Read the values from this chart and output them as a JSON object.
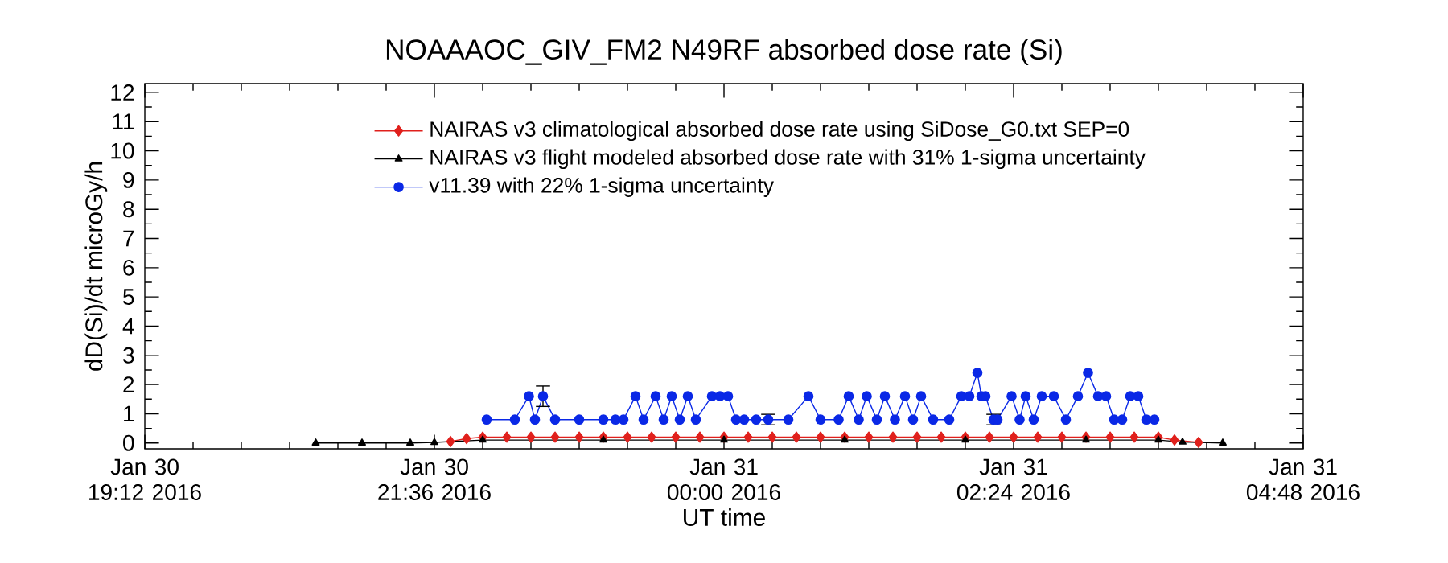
{
  "chart_data": {
    "type": "line",
    "title": "NOAAAOC_GIV_FM2    N49RF  absorbed dose rate (Si)",
    "xlabel": "UT time",
    "ylabel": "dD(Si)/dt microGy/h",
    "xlim": [
      "2016-01-30T19:12",
      "2016-01-31T04:48"
    ],
    "ylim": [
      -0.2,
      12.3
    ],
    "xticks": [
      {
        "value": "2016-01-30T19:12",
        "label": "Jan 30 19:12 2016"
      },
      {
        "value": "2016-01-30T21:36",
        "label": "Jan 30 21:36 2016"
      },
      {
        "value": "2016-01-31T00:00",
        "label": "Jan 31 00:00 2016"
      },
      {
        "value": "2016-01-31T02:24",
        "label": "Jan 31 02:24 2016"
      },
      {
        "value": "2016-01-31T04:48",
        "label": "Jan 31 04:48 2016"
      }
    ],
    "yticks": [
      0,
      1,
      2,
      3,
      4,
      5,
      6,
      7,
      8,
      9,
      10,
      11,
      12
    ],
    "legend": "top",
    "series": [
      {
        "name": "NAIRAS v3 climatological absorbed dose rate using SiDose_G0.txt SEP=0",
        "color": "#e0201c",
        "marker": "diamond",
        "x": [
          "2016-01-30T21:44",
          "2016-01-30T21:52",
          "2016-01-30T22:00",
          "2016-01-30T22:12",
          "2016-01-30T22:24",
          "2016-01-30T22:36",
          "2016-01-30T22:48",
          "2016-01-30T23:00",
          "2016-01-30T23:12",
          "2016-01-30T23:24",
          "2016-01-30T23:36",
          "2016-01-30T23:48",
          "2016-01-31T00:00",
          "2016-01-31T00:12",
          "2016-01-31T00:24",
          "2016-01-31T00:36",
          "2016-01-31T00:48",
          "2016-01-31T01:00",
          "2016-01-31T01:12",
          "2016-01-31T01:24",
          "2016-01-31T01:36",
          "2016-01-31T01:48",
          "2016-01-31T02:00",
          "2016-01-31T02:12",
          "2016-01-31T02:24",
          "2016-01-31T02:36",
          "2016-01-31T02:48",
          "2016-01-31T03:00",
          "2016-01-31T03:12",
          "2016-01-31T03:24",
          "2016-01-31T03:36",
          "2016-01-31T03:44",
          "2016-01-31T03:56"
        ],
        "values": [
          0.05,
          0.15,
          0.2,
          0.2,
          0.2,
          0.2,
          0.2,
          0.2,
          0.2,
          0.2,
          0.2,
          0.2,
          0.2,
          0.2,
          0.2,
          0.2,
          0.2,
          0.2,
          0.2,
          0.2,
          0.2,
          0.2,
          0.2,
          0.2,
          0.2,
          0.2,
          0.2,
          0.2,
          0.2,
          0.2,
          0.2,
          0.1,
          0.02
        ]
      },
      {
        "name": "NAIRAS v3 flight modeled absorbed dose rate with 31% 1-sigma uncertainty",
        "color": "#000000",
        "marker": "triangle",
        "x": [
          "2016-01-30T20:37",
          "2016-01-30T21:00",
          "2016-01-30T21:24",
          "2016-01-30T21:36",
          "2016-01-30T22:00",
          "2016-01-30T23:00",
          "2016-01-31T00:00",
          "2016-01-31T01:00",
          "2016-01-31T02:00",
          "2016-01-31T03:00",
          "2016-01-31T03:36",
          "2016-01-31T03:48",
          "2016-01-31T04:08"
        ],
        "values": [
          0,
          0,
          0,
          0.02,
          0.1,
          0.1,
          0.1,
          0.1,
          0.1,
          0.1,
          0.1,
          0.03,
          0
        ]
      },
      {
        "name": "v11.39 with 22% 1-sigma uncertainty",
        "color": "#0a28e6",
        "marker": "circle",
        "x": [
          "2016-01-30T22:02",
          "2016-01-30T22:16",
          "2016-01-30T22:23",
          "2016-01-30T22:26",
          "2016-01-30T22:30",
          "2016-01-30T22:36",
          "2016-01-30T22:48",
          "2016-01-30T23:00",
          "2016-01-30T23:06",
          "2016-01-30T23:08",
          "2016-01-30T23:10",
          "2016-01-30T23:16",
          "2016-01-30T23:20",
          "2016-01-30T23:26",
          "2016-01-30T23:30",
          "2016-01-30T23:34",
          "2016-01-30T23:38",
          "2016-01-30T23:42",
          "2016-01-30T23:46",
          "2016-01-30T23:54",
          "2016-01-30T23:58",
          "2016-01-31T00:02",
          "2016-01-31T00:06",
          "2016-01-31T00:08",
          "2016-01-31T00:10",
          "2016-01-31T00:16",
          "2016-01-31T00:22",
          "2016-01-31T00:32",
          "2016-01-31T00:42",
          "2016-01-31T00:48",
          "2016-01-31T00:57",
          "2016-01-31T01:02",
          "2016-01-31T01:07",
          "2016-01-31T01:11",
          "2016-01-31T01:16",
          "2016-01-31T01:20",
          "2016-01-31T01:25",
          "2016-01-31T01:30",
          "2016-01-31T01:34",
          "2016-01-31T01:38",
          "2016-01-31T01:44",
          "2016-01-31T01:52",
          "2016-01-31T01:58",
          "2016-01-31T02:02",
          "2016-01-31T02:06",
          "2016-01-31T02:08",
          "2016-01-31T02:10",
          "2016-01-31T02:14",
          "2016-01-31T02:16",
          "2016-01-31T02:23",
          "2016-01-31T02:27",
          "2016-01-31T02:30",
          "2016-01-31T02:34",
          "2016-01-31T02:38",
          "2016-01-31T02:44",
          "2016-01-31T02:50",
          "2016-01-31T02:56",
          "2016-01-31T03:01",
          "2016-01-31T03:06",
          "2016-01-31T03:10",
          "2016-01-31T03:14",
          "2016-01-31T03:18",
          "2016-01-31T03:22",
          "2016-01-31T03:26",
          "2016-01-31T03:30",
          "2016-01-31T03:34"
        ],
        "values": [
          0.8,
          0.8,
          1.6,
          0.8,
          1.6,
          0.8,
          0.8,
          0.8,
          0.8,
          null,
          0.8,
          1.6,
          0.8,
          1.6,
          0.8,
          1.6,
          0.8,
          1.6,
          0.8,
          1.6,
          1.6,
          1.6,
          0.8,
          null,
          0.8,
          0.8,
          0.8,
          0.8,
          1.6,
          0.8,
          0.8,
          1.6,
          0.8,
          1.6,
          0.8,
          1.6,
          0.8,
          1.6,
          0.8,
          1.6,
          0.8,
          0.8,
          1.6,
          1.6,
          2.4,
          1.6,
          1.6,
          0.8,
          0.8,
          1.6,
          0.8,
          1.6,
          0.8,
          1.6,
          1.6,
          0.8,
          1.6,
          2.4,
          1.6,
          1.6,
          0.8,
          0.8,
          1.6,
          1.6,
          0.8,
          0.8
        ],
        "errors": [
          null,
          null,
          null,
          null,
          0.35,
          null,
          null,
          null,
          null,
          null,
          null,
          null,
          null,
          null,
          null,
          null,
          null,
          null,
          null,
          null,
          null,
          null,
          null,
          null,
          null,
          null,
          0.18,
          null,
          null,
          null,
          null,
          null,
          null,
          null,
          null,
          null,
          null,
          null,
          null,
          null,
          null,
          null,
          null,
          null,
          null,
          null,
          null,
          0.18,
          null,
          null,
          null,
          null,
          null,
          null,
          null,
          null,
          null,
          null,
          null,
          null,
          null,
          null,
          null,
          null,
          null,
          null
        ]
      }
    ]
  }
}
